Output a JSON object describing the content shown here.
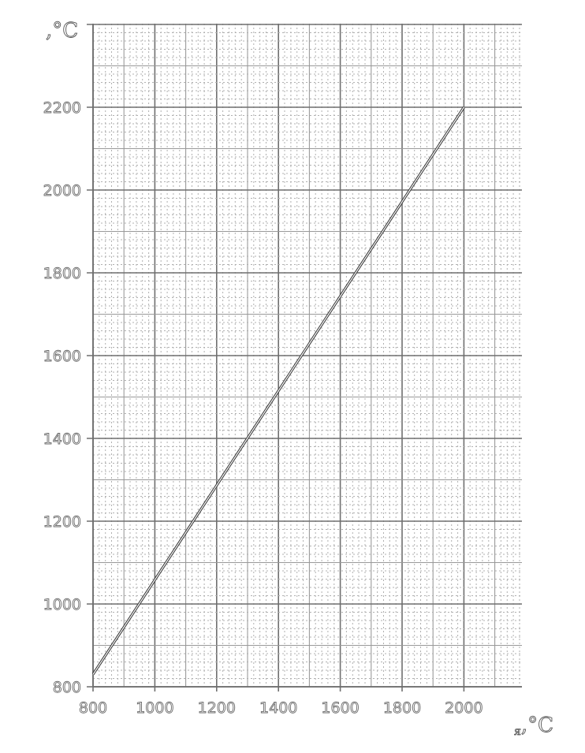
{
  "chart_data": {
    "type": "line",
    "title": "",
    "xlabel": "я,°C",
    "ylabel": ",°C",
    "xlim": [
      800,
      2150
    ],
    "ylim": [
      800,
      2400
    ],
    "x_ticks": [
      800,
      1000,
      1200,
      1400,
      1600,
      1800,
      2000
    ],
    "y_ticks": [
      800,
      1000,
      1200,
      1400,
      1600,
      1800,
      2000,
      2200
    ],
    "grid": true,
    "legend": "none",
    "series": [
      {
        "x": [
          800,
          2000
        ],
        "y": [
          830,
          2200
        ]
      }
    ],
    "colors": {
      "line": "#333333",
      "grid_major": "#6f6f6f",
      "grid_minor": "#b0b0b0",
      "tick_text": "#6a6a6a"
    }
  }
}
